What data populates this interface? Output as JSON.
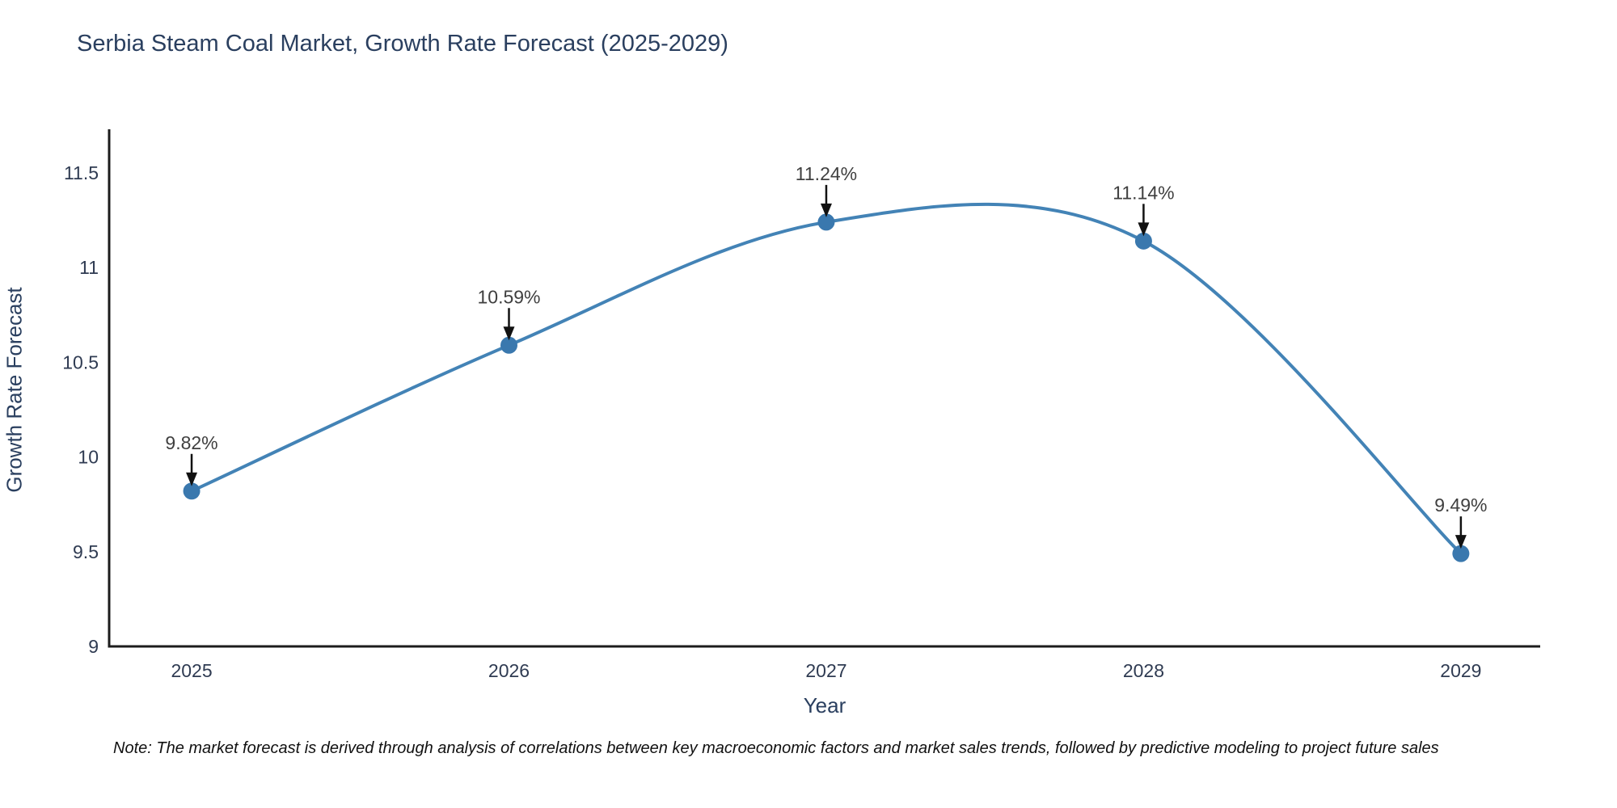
{
  "title": "Serbia Steam Coal Market, Growth Rate Forecast (2025-2029)",
  "footnote": "Note: The market forecast is derived through analysis of correlations between key macroeconomic factors and market sales trends, followed by predictive modeling to project future sales",
  "chart_data": {
    "type": "line",
    "title": "Serbia Steam Coal Market, Growth Rate Forecast (2025-2029)",
    "xlabel": "Year",
    "ylabel": "Growth Rate Forecast",
    "categories": [
      2025,
      2026,
      2027,
      2028,
      2029
    ],
    "series": [
      {
        "name": "Growth Rate Forecast",
        "values": [
          9.82,
          10.59,
          11.24,
          11.14,
          9.49
        ]
      }
    ],
    "point_labels": [
      "9.82%",
      "10.59%",
      "11.24%",
      "11.14%",
      "9.49%"
    ],
    "yticks": [
      9,
      9.5,
      10,
      10.5,
      11,
      11.5
    ],
    "ylim": [
      9,
      11.73
    ],
    "xlim": [
      2024.74,
      2029.25
    ],
    "grid": false,
    "legend": "none",
    "line_shape": "spline",
    "annotation_style": "label-with-down-arrow",
    "colors": {
      "line": "#4383b6",
      "marker": "#3a78ae",
      "axis": "#1c1c1c",
      "title_text": "#2a3f5f",
      "tick_text": "#2f3b52",
      "annotation_text": "#3f3f3f",
      "arrow": "#111111",
      "background": "#ffffff"
    }
  }
}
